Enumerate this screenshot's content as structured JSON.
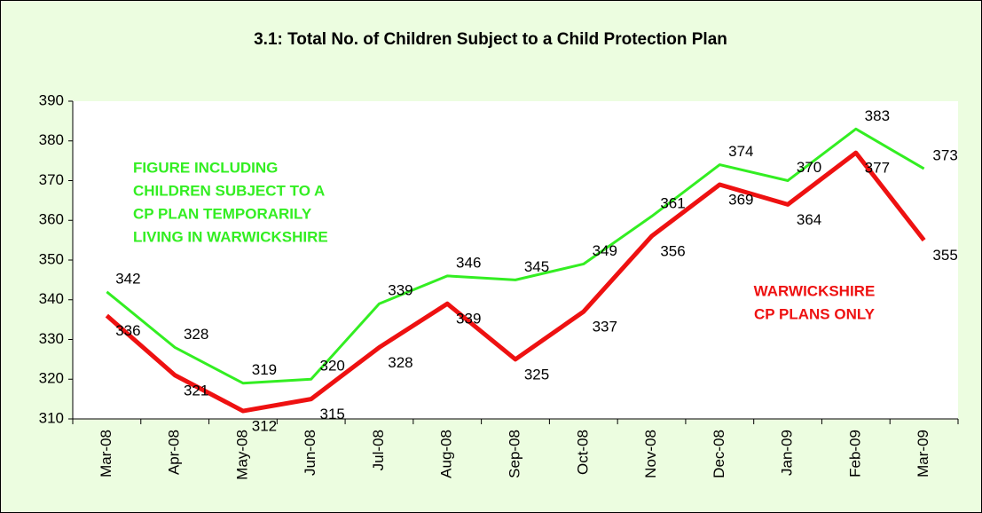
{
  "chart_data": {
    "type": "line",
    "title": "3.1: Total No. of Children Subject to a Child Protection Plan",
    "categories": [
      "Mar-08",
      "Apr-08",
      "May-08",
      "Jun-08",
      "Jul-08",
      "Aug-08",
      "Sep-08",
      "Oct-08",
      "Nov-08",
      "Dec-08",
      "Jan-09",
      "Feb-09",
      "Mar-09"
    ],
    "series": [
      {
        "color": "#33ee22",
        "values": [
          342,
          328,
          319,
          320,
          339,
          346,
          345,
          349,
          361,
          374,
          370,
          383,
          373
        ],
        "annotation": [
          "FIGURE INCLUDING",
          "CHILDREN SUBJECT TO A",
          "CP PLAN TEMPORARILY",
          "LIVING IN WARWICKSHIRE"
        ]
      },
      {
        "color": "#ee1111",
        "values": [
          336,
          321,
          312,
          315,
          328,
          339,
          325,
          337,
          356,
          369,
          364,
          377,
          355
        ],
        "annotation": [
          "WARWICKSHIRE",
          "CP PLANS ONLY"
        ]
      }
    ],
    "ylim": [
      310,
      390
    ],
    "yticks": [
      310,
      320,
      330,
      340,
      350,
      360,
      370,
      380,
      390
    ]
  }
}
